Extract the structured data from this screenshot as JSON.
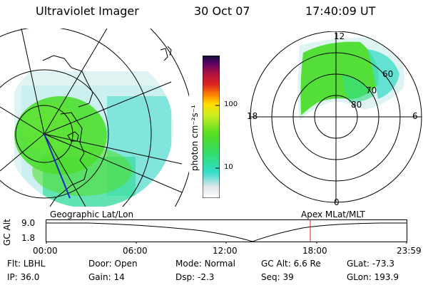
{
  "header": {
    "title": "Ultraviolet Imager",
    "date": "30 Oct 07",
    "time": "17:40:09 UT"
  },
  "colorbar": {
    "unit_label": "photon cm⁻²s⁻¹",
    "ticks": [
      "100",
      "10"
    ]
  },
  "polar_plot": {
    "mlt_labels": {
      "top": "12",
      "left": "18",
      "right": "6",
      "bottom": "0"
    },
    "lat_labels": [
      "60",
      "70",
      "80"
    ]
  },
  "timeline": {
    "left_label": "Geographic Lat/Lon",
    "right_label": "Apex MLat/MLT",
    "ylabel": "GC Alt",
    "y_ticks": [
      "9.0",
      "1.8"
    ],
    "x_ticks": [
      "00:00",
      "06:00",
      "12:00",
      "18:00",
      "23:59"
    ]
  },
  "info": {
    "row1": [
      {
        "label": "Flt:",
        "value": "LBHL"
      },
      {
        "label": "Door:",
        "value": "Open"
      },
      {
        "label": "Mode:",
        "value": "Normal"
      },
      {
        "label": "GC Alt:",
        "value": "6.6 Re"
      },
      {
        "label": "GLat:",
        "value": "-73.3"
      }
    ],
    "row2": [
      {
        "label": "IP:",
        "value": "36.0"
      },
      {
        "label": "Gain:",
        "value": "14"
      },
      {
        "label": "Dsp:",
        "value": "-2.3"
      },
      {
        "label": "Seq:",
        "value": "39"
      },
      {
        "label": "GLon:",
        "value": "193.9"
      }
    ]
  },
  "colors": {
    "aurora_green": "#44dd22",
    "aurora_cyan": "#33ddcc",
    "noise_light": "#cfeff0",
    "marker_red": "#dd2222"
  }
}
